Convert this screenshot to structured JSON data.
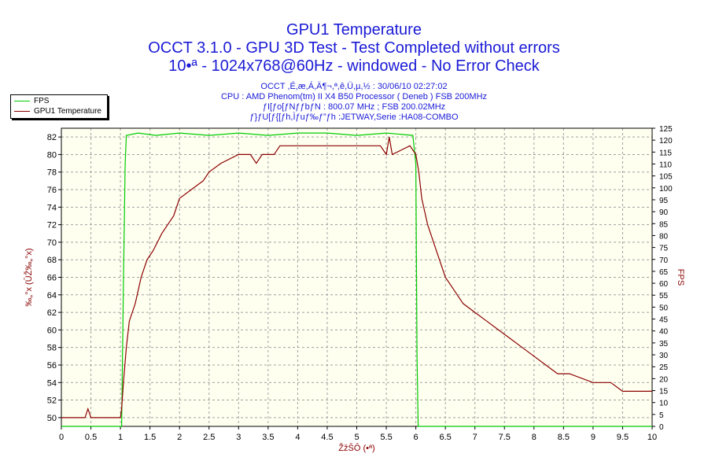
{
  "title": {
    "line1": "GPU1 Temperature",
    "line2": "OCCT 3.1.0 - GPU 3D Test - Test Completed without errors",
    "line3": "10•ª - 1024x768@60Hz - windowed - No Error Check"
  },
  "info": {
    "line1": "OCCT ,É,æ,Á,Ä¶¬,ª,ê,Ü,µ,½ : 30/06/10 02:27:02",
    "line2": "CPU : AMD Phenom(tm) II X4 B50 Processor ( Deneb ) FSB 200MHz",
    "line3": "ƒI[ƒo[ƒNƒƒbƒN : 800.07 MHz ; FSB 200.02MHz",
    "line4": "ƒ}ƒU[ƒ{[ƒh,Ìƒuƒ‰ƒ”ƒh :JETWAY,Serie :HA08-COMBO"
  },
  "colors": {
    "fps": "#00cc00",
    "temperature": "#8b0000",
    "plot_bg": "#fffff0",
    "grid": "#a0a0a0",
    "axis_text": "#1a1ad6"
  },
  "chart_data": {
    "type": "line",
    "title": "GPU1 Temperature",
    "xlabel": "ŽžŠÔ (•ª)",
    "ylabel_left": "‰„°x (ÛŽ‰„°x)",
    "ylabel_right": "FPS",
    "xlim": [
      0,
      10
    ],
    "ylim_left": [
      49,
      83
    ],
    "ylim_right": [
      0,
      125
    ],
    "x_ticks": [
      "0",
      "0.5",
      "1",
      "1.5",
      "2",
      "2.5",
      "3",
      "3.5",
      "4",
      "4.5",
      "5",
      "5.5",
      "6",
      "6.5",
      "7",
      "7.5",
      "8",
      "8.5",
      "9",
      "9.5",
      "10"
    ],
    "y_left_ticks": [
      "50",
      "52",
      "54",
      "56",
      "58",
      "60",
      "62",
      "64",
      "66",
      "68",
      "70",
      "72",
      "74",
      "76",
      "78",
      "80",
      "82"
    ],
    "y_right_ticks": [
      "0",
      "5",
      "10",
      "15",
      "20",
      "25",
      "30",
      "35",
      "40",
      "45",
      "50",
      "55",
      "60",
      "65",
      "70",
      "75",
      "80",
      "85",
      "90",
      "95",
      "100",
      "105",
      "110",
      "115",
      "120",
      "125"
    ],
    "grid": true,
    "legend_position": "top-left",
    "series": [
      {
        "name": "FPS",
        "axis": "right",
        "color": "#00cc00",
        "points": [
          [
            0,
            0
          ],
          [
            1.02,
            0
          ],
          [
            1.05,
            60
          ],
          [
            1.08,
            110
          ],
          [
            1.1,
            122
          ],
          [
            1.3,
            123
          ],
          [
            1.6,
            122
          ],
          [
            2,
            123
          ],
          [
            2.5,
            122
          ],
          [
            3,
            123
          ],
          [
            3.5,
            122
          ],
          [
            4,
            123
          ],
          [
            4.5,
            123
          ],
          [
            5,
            122
          ],
          [
            5.5,
            123
          ],
          [
            5.95,
            122
          ],
          [
            6.0,
            110
          ],
          [
            6.02,
            30
          ],
          [
            6.04,
            0
          ],
          [
            10,
            0
          ]
        ]
      },
      {
        "name": "GPU1 Temperature",
        "axis": "left",
        "color": "#8b0000",
        "points": [
          [
            0,
            50
          ],
          [
            0.4,
            50
          ],
          [
            0.45,
            51
          ],
          [
            0.5,
            50
          ],
          [
            1.0,
            50
          ],
          [
            1.02,
            51
          ],
          [
            1.05,
            54
          ],
          [
            1.1,
            58
          ],
          [
            1.15,
            61
          ],
          [
            1.25,
            63
          ],
          [
            1.35,
            66
          ],
          [
            1.45,
            68
          ],
          [
            1.55,
            69
          ],
          [
            1.7,
            71
          ],
          [
            1.8,
            72
          ],
          [
            1.9,
            73
          ],
          [
            2.0,
            75
          ],
          [
            2.2,
            76
          ],
          [
            2.4,
            77
          ],
          [
            2.5,
            78
          ],
          [
            2.7,
            79
          ],
          [
            3.0,
            80
          ],
          [
            3.2,
            80
          ],
          [
            3.3,
            79
          ],
          [
            3.4,
            80
          ],
          [
            3.6,
            80
          ],
          [
            3.7,
            81
          ],
          [
            4.0,
            81
          ],
          [
            4.5,
            81
          ],
          [
            5.0,
            81
          ],
          [
            5.4,
            81
          ],
          [
            5.5,
            80
          ],
          [
            5.55,
            82
          ],
          [
            5.6,
            80
          ],
          [
            5.9,
            81
          ],
          [
            6.0,
            80
          ],
          [
            6.05,
            78
          ],
          [
            6.1,
            75
          ],
          [
            6.2,
            72
          ],
          [
            6.3,
            70
          ],
          [
            6.4,
            68
          ],
          [
            6.5,
            66
          ],
          [
            6.6,
            65
          ],
          [
            6.7,
            64
          ],
          [
            6.8,
            63
          ],
          [
            7.0,
            62
          ],
          [
            7.2,
            61
          ],
          [
            7.4,
            60
          ],
          [
            7.6,
            59
          ],
          [
            7.8,
            58
          ],
          [
            8.0,
            57
          ],
          [
            8.2,
            56
          ],
          [
            8.4,
            55
          ],
          [
            8.6,
            55
          ],
          [
            9.0,
            54
          ],
          [
            9.3,
            54
          ],
          [
            9.5,
            53
          ],
          [
            9.6,
            53
          ],
          [
            9.7,
            53
          ],
          [
            10.0,
            53
          ]
        ]
      }
    ]
  }
}
